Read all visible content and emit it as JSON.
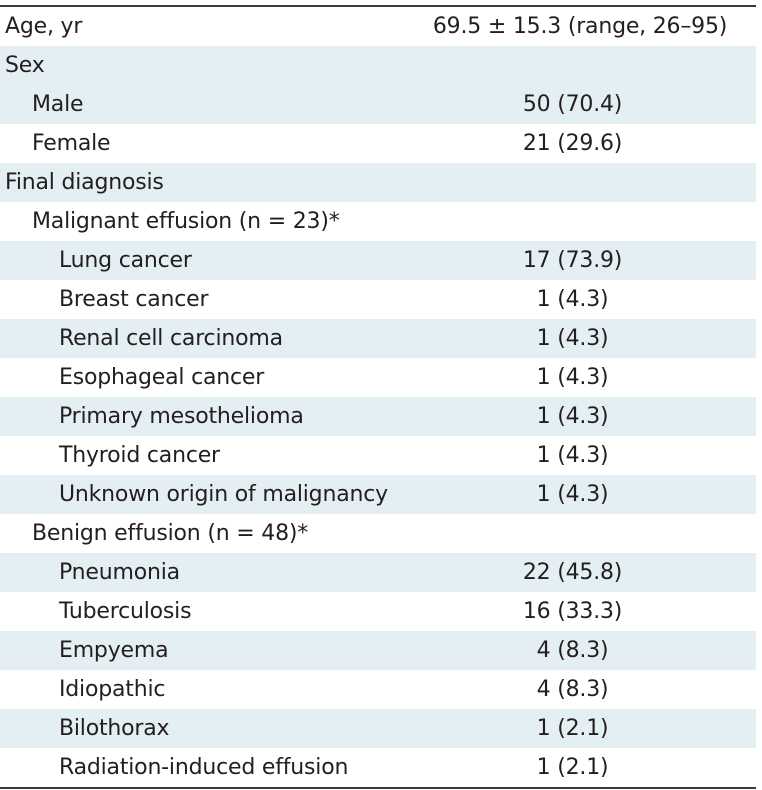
{
  "rows": [
    {
      "label": "Age, yr",
      "value": "69.5 ± 15.3 (range, 26–95)",
      "level": 0,
      "shade": false
    },
    {
      "label": "Sex",
      "value": "",
      "level": 0,
      "shade": true
    },
    {
      "label": "Male",
      "value": "50 (70.4)",
      "level": 1,
      "shade": true
    },
    {
      "label": "Female",
      "value": "21 (29.6)",
      "level": 1,
      "shade": false
    },
    {
      "label": "Final diagnosis",
      "value": "",
      "level": 0,
      "shade": true
    },
    {
      "label": "Malignant effusion (n = 23)*",
      "value": "",
      "level": 1,
      "shade": false
    },
    {
      "label": "Lung cancer",
      "value": "17 (73.9)",
      "level": 2,
      "shade": true
    },
    {
      "label": "Breast cancer",
      "value": "1 (4.3)",
      "level": 2,
      "shade": false
    },
    {
      "label": "Renal cell carcinoma",
      "value": "1 (4.3)",
      "level": 2,
      "shade": true
    },
    {
      "label": "Esophageal cancer",
      "value": "1 (4.3)",
      "level": 2,
      "shade": false
    },
    {
      "label": "Primary mesothelioma",
      "value": "1 (4.3)",
      "level": 2,
      "shade": true
    },
    {
      "label": "Thyroid cancer",
      "value": "1 (4.3)",
      "level": 2,
      "shade": false
    },
    {
      "label": "Unknown origin of malignancy",
      "value": "1 (4.3)",
      "level": 2,
      "shade": true
    },
    {
      "label": "Benign effusion (n = 48)*",
      "value": "",
      "level": 1,
      "shade": false
    },
    {
      "label": "Pneumonia",
      "value": "22 (45.8)",
      "level": 2,
      "shade": true
    },
    {
      "label": "Tuberculosis",
      "value": "16 (33.3)",
      "level": 2,
      "shade": false
    },
    {
      "label": "Empyema",
      "value": "4 (8.3)",
      "level": 2,
      "shade": true
    },
    {
      "label": "Idiopathic",
      "value": "4 (8.3)",
      "level": 2,
      "shade": false
    },
    {
      "label": "Bilothorax",
      "value": "1 (2.1)",
      "level": 2,
      "shade": true
    },
    {
      "label": "Radiation-induced effusion",
      "value": "1 (2.1)",
      "level": 2,
      "shade": false
    }
  ],
  "colors": {
    "shade": "#e4eff3",
    "text": "#231f20",
    "rule": "#3a3a3a"
  }
}
